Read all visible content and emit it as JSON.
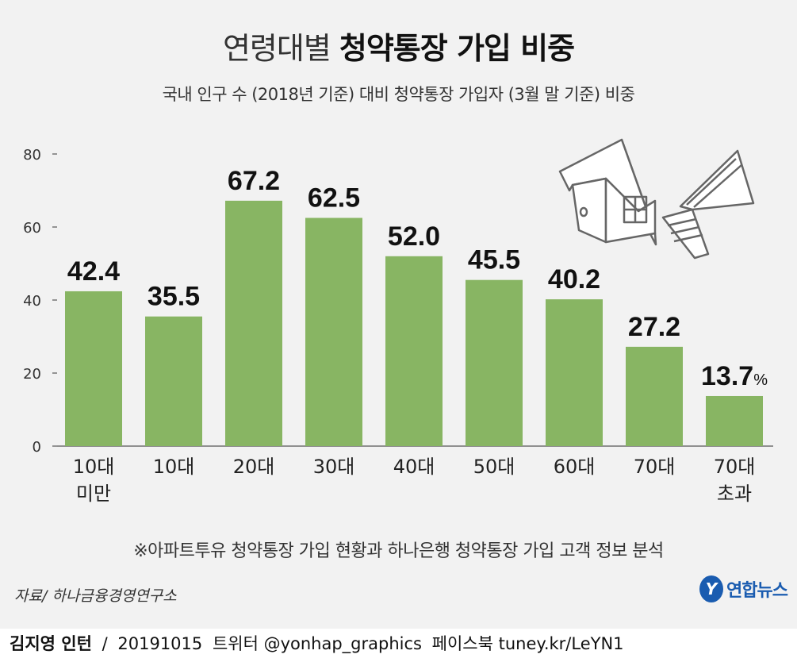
{
  "title": {
    "light": "연령대별",
    "bold": "청약통장 가입 비중"
  },
  "subtitle": "국내 인구 수 (2018년 기준) 대비 청약통장 가입자 (3월 말 기준) 비중",
  "note": "※아파트투유 청약통장 가입 현황과 하나은행 청약통장 가입 고객 정보 분석",
  "source": "자료/ 하나금융경영연구소",
  "logo": {
    "mark": "Y",
    "text": "연합뉴스"
  },
  "footer": {
    "author": "김지영 인턴",
    "sep": "/",
    "date": "20191015",
    "twitter": "트위터 @yonhap_graphics",
    "facebook": "페이스북 tuney.kr/LeYN1"
  },
  "colors": {
    "bar": "#88b563",
    "panel": "#f2f2f2",
    "logo": "#1a5cb0"
  },
  "chart_data": {
    "type": "bar",
    "categories": [
      [
        "10대",
        "미만"
      ],
      [
        "10대"
      ],
      [
        "20대"
      ],
      [
        "30대"
      ],
      [
        "40대"
      ],
      [
        "50대"
      ],
      [
        "60대"
      ],
      [
        "70대"
      ],
      [
        "70대",
        "초과"
      ]
    ],
    "values": [
      42.4,
      35.5,
      67.2,
      62.5,
      52.0,
      45.5,
      40.2,
      27.2,
      13.7
    ],
    "value_labels": [
      "42.4",
      "35.5",
      "67.2",
      "62.5",
      "52.0",
      "45.5",
      "40.2",
      "27.2",
      "13.7"
    ],
    "unit": "%",
    "ylim": [
      0,
      80
    ],
    "yticks": [
      0,
      20,
      40,
      60,
      80
    ],
    "ytick_labels": [
      "0",
      "20",
      "40",
      "60",
      "80"
    ],
    "xlabel": "",
    "ylabel": ""
  }
}
